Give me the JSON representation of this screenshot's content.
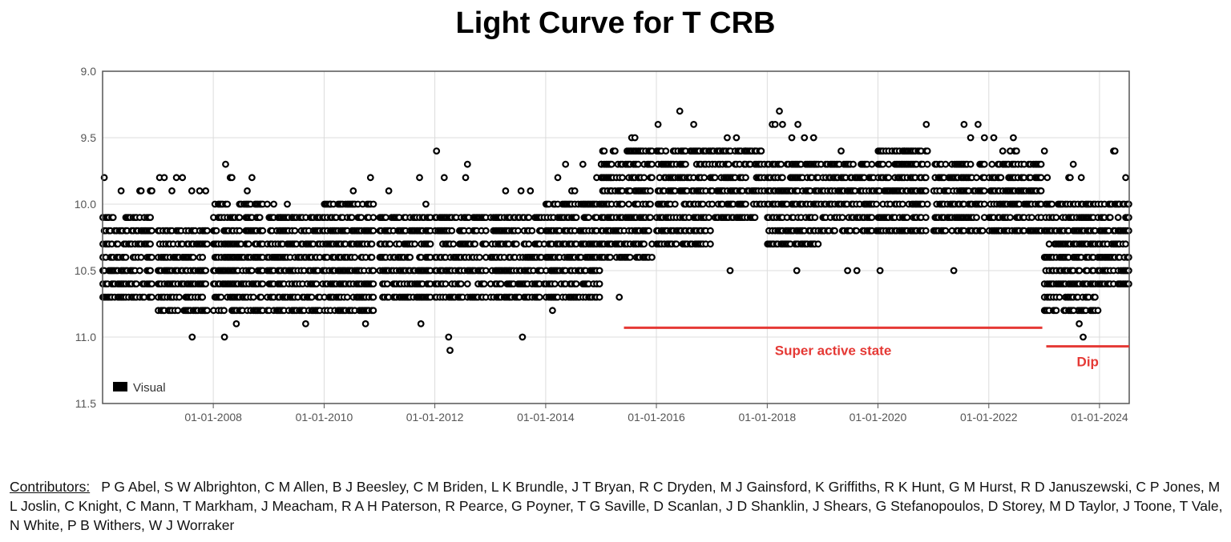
{
  "chart_data": {
    "type": "scatter",
    "title": "Light Curve for T CRB",
    "xlabel": "",
    "ylabel": "",
    "y_axis_inverted": true,
    "ylim": [
      9.0,
      11.5
    ],
    "xlim": [
      "2006-01-01",
      "2024-07-15"
    ],
    "grid": true,
    "legend_position": "bottom-left",
    "marker": "open-circle",
    "series": [
      {
        "name": "Visual",
        "color": "#000000",
        "band_segments": [
          {
            "x_start": "2006-01-01",
            "x_end": "2006-12-31",
            "y_min": 10.1,
            "y_max": 10.7,
            "peak": 9.8
          },
          {
            "x_start": "2007-01-01",
            "x_end": "2007-12-31",
            "y_min": 10.2,
            "y_max": 10.8,
            "peak": 9.8
          },
          {
            "x_start": "2008-01-01",
            "x_end": "2008-12-31",
            "y_min": 10.0,
            "y_max": 10.8,
            "peak": 9.7
          },
          {
            "x_start": "2009-01-01",
            "x_end": "2009-12-31",
            "y_min": 10.1,
            "y_max": 10.8,
            "peak": 10.0
          },
          {
            "x_start": "2010-01-01",
            "x_end": "2010-12-31",
            "y_min": 10.0,
            "y_max": 10.8,
            "peak": 9.8
          },
          {
            "x_start": "2011-01-01",
            "x_end": "2011-12-31",
            "y_min": 10.1,
            "y_max": 10.7,
            "peak": 9.8
          },
          {
            "x_start": "2012-01-01",
            "x_end": "2012-12-31",
            "y_min": 10.1,
            "y_max": 10.7,
            "peak": 9.6
          },
          {
            "x_start": "2013-01-01",
            "x_end": "2013-12-31",
            "y_min": 10.1,
            "y_max": 10.7,
            "peak": 9.8
          },
          {
            "x_start": "2014-01-01",
            "x_end": "2014-12-31",
            "y_min": 10.0,
            "y_max": 10.7,
            "peak": 9.7
          },
          {
            "x_start": "2015-01-01",
            "x_end": "2015-12-31",
            "y_min": 9.6,
            "y_max": 10.4,
            "peak": 9.5
          },
          {
            "x_start": "2016-01-01",
            "x_end": "2016-12-31",
            "y_min": 9.6,
            "y_max": 10.3,
            "peak": 9.2
          },
          {
            "x_start": "2017-01-01",
            "x_end": "2017-12-31",
            "y_min": 9.6,
            "y_max": 10.1,
            "peak": 9.5
          },
          {
            "x_start": "2018-01-01",
            "x_end": "2018-12-31",
            "y_min": 9.7,
            "y_max": 10.3,
            "peak": 9.3
          },
          {
            "x_start": "2019-01-01",
            "x_end": "2019-12-31",
            "y_min": 9.7,
            "y_max": 10.2,
            "peak": 9.5
          },
          {
            "x_start": "2020-01-01",
            "x_end": "2020-12-31",
            "y_min": 9.6,
            "y_max": 10.2,
            "peak": 9.5
          },
          {
            "x_start": "2021-01-01",
            "x_end": "2021-12-31",
            "y_min": 9.7,
            "y_max": 10.2,
            "peak": 9.4
          },
          {
            "x_start": "2022-01-01",
            "x_end": "2022-12-31",
            "y_min": 9.7,
            "y_max": 10.2,
            "peak": 9.5
          },
          {
            "x_start": "2023-01-01",
            "x_end": "2023-12-31",
            "y_min": 10.0,
            "y_max": 10.8,
            "peak": 9.6
          },
          {
            "x_start": "2024-01-01",
            "x_end": "2024-07-15",
            "y_min": 10.0,
            "y_max": 10.6,
            "peak": 9.6
          }
        ],
        "outliers": [
          {
            "x": "2007-08-15",
            "y": 11.0
          },
          {
            "x": "2008-03-15",
            "y": 11.0
          },
          {
            "x": "2008-06-01",
            "y": 10.9
          },
          {
            "x": "2009-09-01",
            "y": 10.9
          },
          {
            "x": "2010-10-01",
            "y": 10.9
          },
          {
            "x": "2011-10-01",
            "y": 10.9
          },
          {
            "x": "2012-04-01",
            "y": 11.0
          },
          {
            "x": "2012-04-10",
            "y": 11.1
          },
          {
            "x": "2013-08-01",
            "y": 11.0
          },
          {
            "x": "2014-02-15",
            "y": 10.8
          },
          {
            "x": "2015-05-01",
            "y": 10.7
          },
          {
            "x": "2017-05-01",
            "y": 10.5
          },
          {
            "x": "2018-07-15",
            "y": 10.5
          },
          {
            "x": "2019-06-15",
            "y": 10.5
          },
          {
            "x": "2019-08-15",
            "y": 10.5
          },
          {
            "x": "2020-01-15",
            "y": 10.5
          },
          {
            "x": "2020-11-15",
            "y": 9.4
          },
          {
            "x": "2021-05-15",
            "y": 10.5
          },
          {
            "x": "2023-07-15",
            "y": 10.8
          },
          {
            "x": "2023-08-20",
            "y": 10.9
          },
          {
            "x": "2023-09-15",
            "y": 11.0
          }
        ]
      }
    ],
    "annotations": [
      {
        "text": "Super active state",
        "x_start": "2015-06-01",
        "x_end": "2022-12-20",
        "y": 10.93,
        "color": "#e53935"
      },
      {
        "text": "Dip",
        "x_start": "2023-01-15",
        "x_end": "2024-07-15",
        "y": 11.07,
        "color": "#e53935"
      }
    ],
    "y_ticks": [
      "9.0",
      "9.5",
      "10.0",
      "10.5",
      "11.0",
      "11.5"
    ],
    "x_ticks": [
      "01-01-2008",
      "01-01-2010",
      "01-01-2012",
      "01-01-2014",
      "01-01-2016",
      "01-01-2018",
      "01-01-2020",
      "01-01-2022",
      "01-01-2024"
    ]
  },
  "contributors": {
    "label": "Contributors:",
    "names": "P G Abel, S W Albrighton, C M Allen, B J Beesley, C M Briden, L K Brundle, J T Bryan, R C Dryden, M J Gainsford, K Griffiths, R K Hunt, G M Hurst, R D Januszewski, C P Jones, M L Joslin, C Knight, C Mann, T Markham, J Meacham, R A H Paterson, R Pearce, G Poyner, T G Saville, D Scanlan, J D Shanklin, J Shears, G Stefanopoulos, D Storey, M D Taylor, J Toone, T Vale, N White, P B Withers, W J Worraker"
  }
}
